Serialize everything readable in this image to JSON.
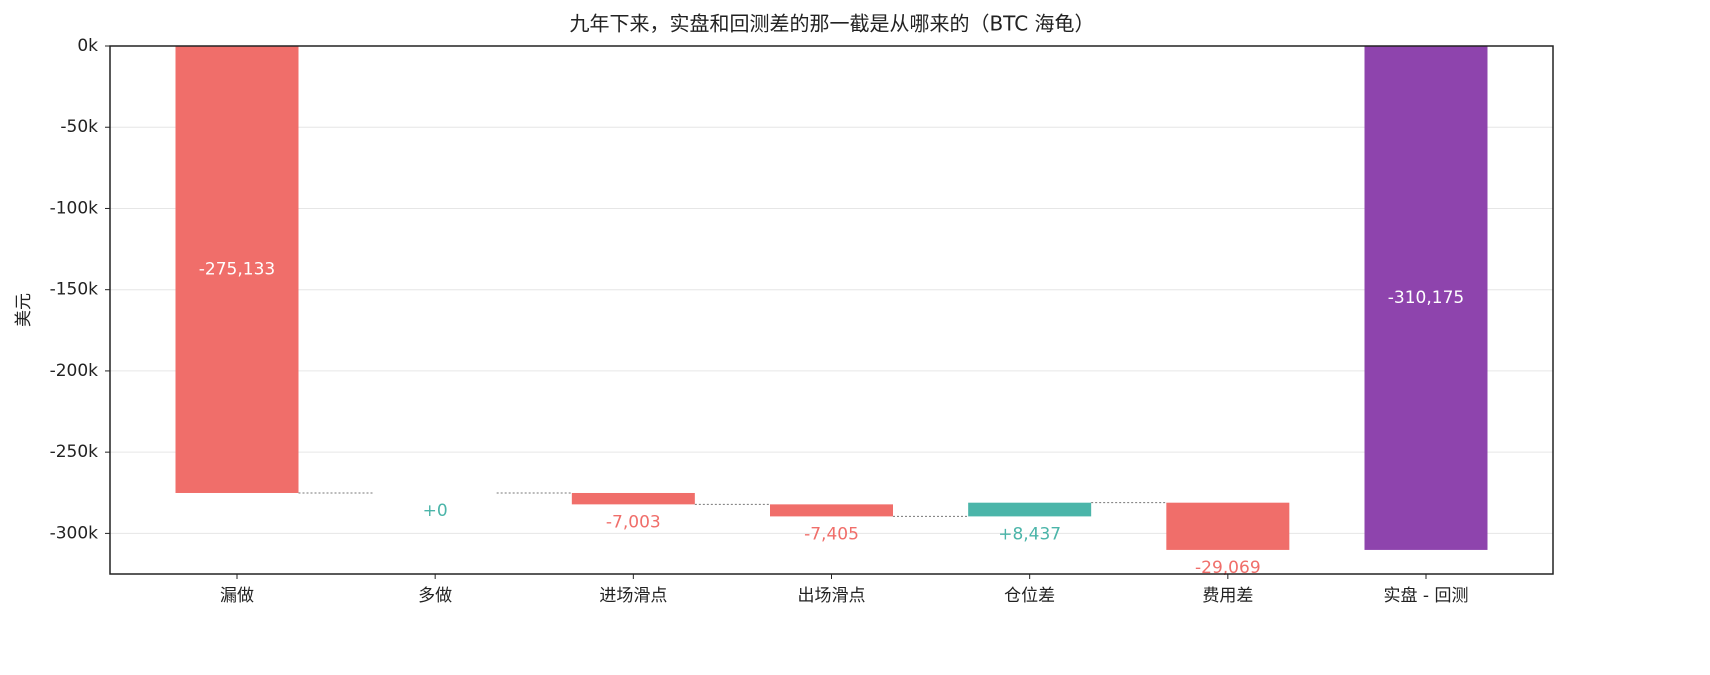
{
  "chart_data": {
    "type": "waterfall",
    "title": "九年下来，实盘和回测差的那一截是从哪来的（BTC 海龟）",
    "y_label": "美元",
    "categories": [
      "漏做",
      "多做",
      "进场滑点",
      "出场滑点",
      "仓位差",
      "费用差",
      "实盘 - 回测"
    ],
    "values": [
      -275133,
      0,
      -7003,
      -7405,
      8437,
      -29069,
      -310175
    ],
    "value_labels": [
      "-275,133",
      "+0",
      "-7,003",
      "-7,405",
      "+8,437",
      "-29,069",
      "-310,175"
    ],
    "measure": [
      "relative",
      "relative",
      "relative",
      "relative",
      "relative",
      "relative",
      "total"
    ],
    "colors": [
      "#f06e6a",
      "#4bb5a9",
      "#f06e6a",
      "#f06e6a",
      "#4bb5a9",
      "#f06e6a",
      "#8e44ad"
    ],
    "ylim": [
      -325000,
      0
    ],
    "yticks": [
      {
        "value": 0,
        "label": "0k"
      },
      {
        "value": -50000,
        "label": "-50k"
      },
      {
        "value": -100000,
        "label": "-100k"
      },
      {
        "value": -150000,
        "label": "-150k"
      },
      {
        "value": -200000,
        "label": "-200k"
      },
      {
        "value": -250000,
        "label": "-250k"
      },
      {
        "value": -300000,
        "label": "-300k"
      }
    ],
    "grid": true
  }
}
